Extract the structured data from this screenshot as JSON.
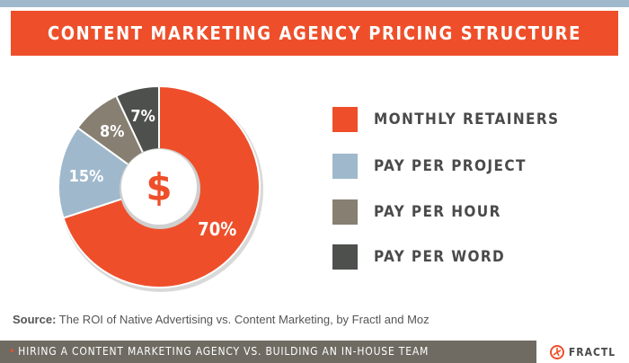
{
  "header": {
    "title": "CONTENT MARKETING AGENCY PRICING STRUCTURE"
  },
  "chart_data": {
    "type": "pie",
    "title": "CONTENT MARKETING AGENCY PRICING STRUCTURE",
    "center_label": "$",
    "slices": [
      {
        "label": "MONTHLY RETAINERS",
        "value": 70,
        "display": "70%",
        "color": "#ee4f2a"
      },
      {
        "label": "PAY PER PROJECT",
        "value": 15,
        "display": "15%",
        "color": "#9fb8cc"
      },
      {
        "label": "PAY PER HOUR",
        "value": 8,
        "display": "8%",
        "color": "#877f71"
      },
      {
        "label": "PAY PER WORD",
        "value": 7,
        "display": "7%",
        "color": "#4e504d"
      }
    ],
    "legend_position": "right"
  },
  "source": {
    "label": "Source:",
    "text": "The ROI of Native Advertising vs. Content Marketing, by Fractl and Moz"
  },
  "footer": {
    "text": "HIRING A CONTENT MARKETING AGENCY VS. BUILDING AN IN-HOUSE TEAM",
    "brand": "FRACTL"
  },
  "colors": {
    "accent": "#ee4f2a",
    "stripe": "#9fb8cc",
    "footer_bg": "#6f6b62"
  }
}
